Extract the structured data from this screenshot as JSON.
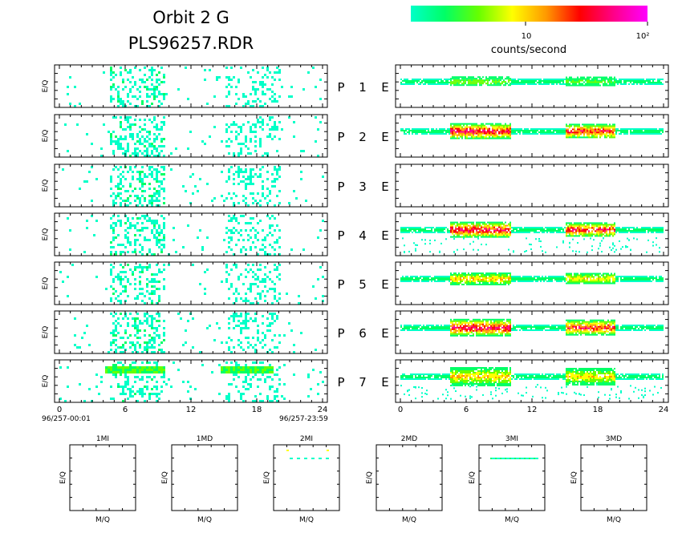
{
  "header": {
    "title_line1": "Orbit 2 G",
    "title_line2": "PLS96257.RDR"
  },
  "colorbar": {
    "colors": [
      "#00ffc8",
      "#00ff66",
      "#66ff00",
      "#ffff00",
      "#ff9900",
      "#ff0000",
      "#ff0088",
      "#ff00ff"
    ],
    "tick_labels": [
      "10",
      "10²"
    ],
    "label": "counts/second"
  },
  "chart_data": {
    "type": "heatmap",
    "x_range": [
      0,
      24
    ],
    "x_ticks": [
      "0",
      "6",
      "12",
      "18",
      "24"
    ],
    "ylabel": "E/Q",
    "start_label": "96/257-00:01",
    "end_label": "96/257-23:59",
    "rows": [
      {
        "p_label": "P",
        "num": "1",
        "e_label": "E",
        "left_density": 0.25,
        "right_intensity": 0.3,
        "right_width": 0.35,
        "right_empty": false
      },
      {
        "p_label": "P",
        "num": "2",
        "e_label": "E",
        "left_density": 0.3,
        "right_intensity": 1.0,
        "right_width": 0.8,
        "right_empty": false
      },
      {
        "p_label": "P",
        "num": "3",
        "e_label": "E",
        "left_density": 0.35,
        "right_intensity": 0.0,
        "right_width": 0.0,
        "right_empty": true
      },
      {
        "p_label": "P",
        "num": "4",
        "e_label": "E",
        "left_density": 0.3,
        "right_intensity": 1.0,
        "right_width": 0.8,
        "right_empty": false
      },
      {
        "p_label": "P",
        "num": "5",
        "e_label": "E",
        "left_density": 0.25,
        "right_intensity": 0.6,
        "right_width": 0.5,
        "right_empty": false
      },
      {
        "p_label": "P",
        "num": "6",
        "e_label": "E",
        "left_density": 0.35,
        "right_intensity": 1.0,
        "right_width": 0.9,
        "right_empty": false
      },
      {
        "p_label": "P",
        "num": "7",
        "e_label": "E",
        "left_density": 0.3,
        "right_intensity": 0.6,
        "right_width": 1.0,
        "right_empty": false
      }
    ],
    "small_panels": [
      {
        "title": "1MI",
        "xlabel": "M/Q",
        "ylabel": "E/Q",
        "has_data": false
      },
      {
        "title": "1MD",
        "xlabel": "M/Q",
        "ylabel": "E/Q",
        "has_data": false
      },
      {
        "title": "2MI",
        "xlabel": "M/Q",
        "ylabel": "E/Q",
        "has_data": true
      },
      {
        "title": "2MD",
        "xlabel": "M/Q",
        "ylabel": "E/Q",
        "has_data": false
      },
      {
        "title": "3MI",
        "xlabel": "M/Q",
        "ylabel": "E/Q",
        "has_data": true
      },
      {
        "title": "3MD",
        "xlabel": "M/Q",
        "ylabel": "E/Q",
        "has_data": false
      }
    ]
  }
}
